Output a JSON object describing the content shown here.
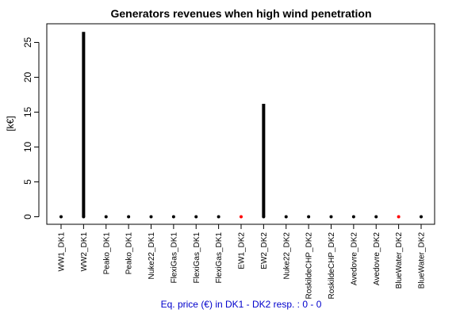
{
  "chart_data": {
    "type": "scatter",
    "title": "Generators revenues when high wind penetration",
    "ylabel": "[k€]",
    "xlabel": "",
    "subtitle": "Eq. price (€) in DK1 - DK2 resp. : 0 - 0",
    "ylim": [
      -1,
      27
    ],
    "yticks": [
      0,
      5,
      10,
      15,
      20,
      25
    ],
    "grid": false,
    "categories": [
      "WW1_DK1",
      "WW2_DK1",
      "Peako_DK1",
      "Peako_DK1",
      "Nuke22_DK1",
      "FlexiGas_DK1",
      "FlexiGas_DK1",
      "FlexiGas_DK1",
      "EW1_DK2",
      "EW2_DK2",
      "Nuke22_DK2",
      "RoskildeCHP_DK2",
      "RoskildeCHP_DK2",
      "Avedovre_DK2",
      "Avedovre_DK2",
      "BlueWater_DK2",
      "BlueWater_DK2"
    ],
    "values": [
      0,
      26.5,
      0,
      0,
      0,
      0,
      0,
      0,
      0,
      16.2,
      0,
      0,
      0,
      0,
      0,
      0,
      0
    ],
    "point_colors": [
      "#000000",
      "#000000",
      "#000000",
      "#000000",
      "#000000",
      "#000000",
      "#000000",
      "#000000",
      "#ff0000",
      "#000000",
      "#000000",
      "#000000",
      "#000000",
      "#000000",
      "#000000",
      "#ff0000",
      "#000000"
    ]
  }
}
